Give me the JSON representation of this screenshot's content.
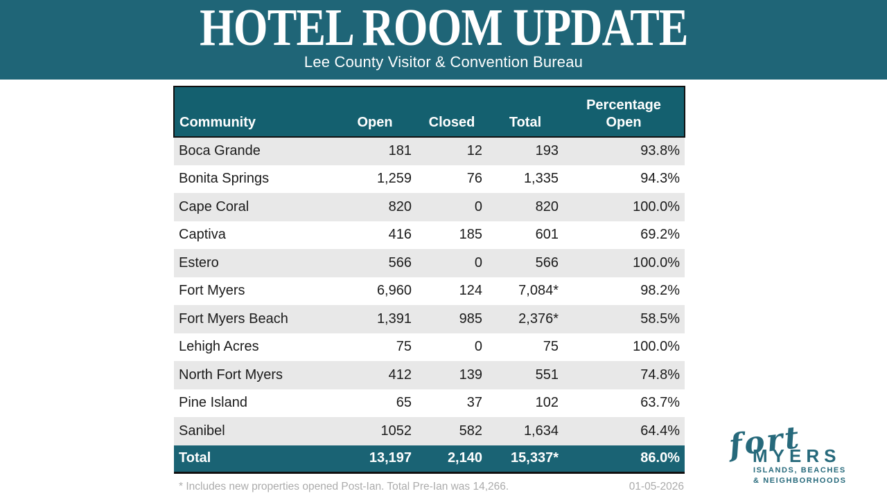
{
  "header": {
    "title": "HOTEL ROOM UPDATE",
    "subtitle": "Lee County Visitor & Convention Bureau"
  },
  "table": {
    "columns": [
      "Community",
      "Open",
      "Closed",
      "Total",
      "Percentage\nOpen"
    ],
    "rows": [
      {
        "community": "Boca Grande",
        "open": "181",
        "closed": "12",
        "total": "193",
        "pct": "93.8%"
      },
      {
        "community": "Bonita Springs",
        "open": "1,259",
        "closed": "76",
        "total": "1,335",
        "pct": "94.3%"
      },
      {
        "community": "Cape Coral",
        "open": "820",
        "closed": "0",
        "total": "820",
        "pct": "100.0%"
      },
      {
        "community": "Captiva",
        "open": "416",
        "closed": "185",
        "total": "601",
        "pct": "69.2%"
      },
      {
        "community": "Estero",
        "open": "566",
        "closed": "0",
        "total": "566",
        "pct": "100.0%"
      },
      {
        "community": "Fort Myers",
        "open": "6,960",
        "closed": "124",
        "total": "7,084*",
        "pct": "98.2%"
      },
      {
        "community": "Fort Myers Beach",
        "open": "1,391",
        "closed": "985",
        "total": "2,376*",
        "pct": "58.5%"
      },
      {
        "community": "Lehigh Acres",
        "open": "75",
        "closed": "0",
        "total": "75",
        "pct": "100.0%"
      },
      {
        "community": "North Fort Myers",
        "open": "412",
        "closed": "139",
        "total": "551",
        "pct": "74.8%"
      },
      {
        "community": "Pine Island",
        "open": "65",
        "closed": "37",
        "total": "102",
        "pct": "63.7%"
      },
      {
        "community": "Sanibel",
        "open": "1052",
        "closed": "582",
        "total": "1,634",
        "pct": "64.4%"
      }
    ],
    "total": {
      "community": "Total",
      "open": "13,197",
      "closed": "2,140",
      "total": "15,337*",
      "pct": "86.0%"
    }
  },
  "footer": {
    "note": "* Includes new properties opened Post-Ian. Total Pre-Ian was 14,266.",
    "date": "01-05-2026"
  },
  "logo": {
    "script": "fort",
    "name": "MYERS",
    "line1": "ISLANDS, BEACHES",
    "line2": "& NEIGHBORHOODS"
  },
  "colors": {
    "band_teal": "#1F6577",
    "table_header_teal": "#14606F",
    "total_row_teal": "#1A6374",
    "row_shade_gray": "#E8E8E8",
    "footnote_gray": "#ABABAB",
    "logo_teal": "#26697B",
    "border_black": "#101010"
  }
}
